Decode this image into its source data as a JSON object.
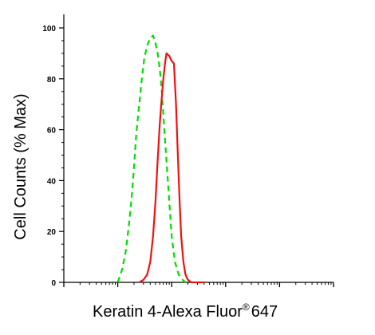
{
  "chart_data": {
    "type": "line",
    "title": "",
    "xlabel": "Keratin 4-Alexa Fluor",
    "xlabel_superscript": "®",
    "xlabel_suffix": "647",
    "ylabel": "Cell Counts (% Max)",
    "x_scale": "log",
    "xlim": [
      1,
      100000
    ],
    "ylim": [
      0,
      100
    ],
    "y_ticks": [
      0,
      20,
      40,
      60,
      80,
      100
    ],
    "grid": false,
    "legend": "none",
    "series": [
      {
        "color": "#00dd00",
        "style": "dashed",
        "x": [
          10,
          12,
          14,
          16,
          18,
          20,
          22,
          25,
          28,
          31,
          35,
          40,
          45,
          50,
          55,
          60,
          65,
          70,
          80,
          90,
          100,
          115,
          135,
          160,
          180
        ],
        "y": [
          0,
          5,
          12,
          22,
          33,
          45,
          58,
          70,
          80,
          88,
          93,
          96,
          97,
          94,
          90,
          84,
          76,
          66,
          48,
          32,
          18,
          8,
          3,
          1,
          0
        ]
      },
      {
        "color": "#ee1111",
        "style": "solid",
        "x": [
          25,
          30,
          35,
          40,
          45,
          50,
          55,
          60,
          65,
          70,
          75,
          80,
          90,
          100,
          110,
          120,
          130,
          140,
          150,
          165,
          180,
          200,
          230,
          270,
          320,
          400
        ],
        "y": [
          0,
          1,
          3,
          8,
          18,
          32,
          48,
          62,
          72,
          80,
          86,
          90,
          89,
          87,
          86,
          70,
          50,
          32,
          18,
          8,
          3,
          1,
          0,
          0,
          0,
          0
        ]
      }
    ]
  },
  "colors": {
    "axis": "#000000",
    "background": "#ffffff"
  }
}
